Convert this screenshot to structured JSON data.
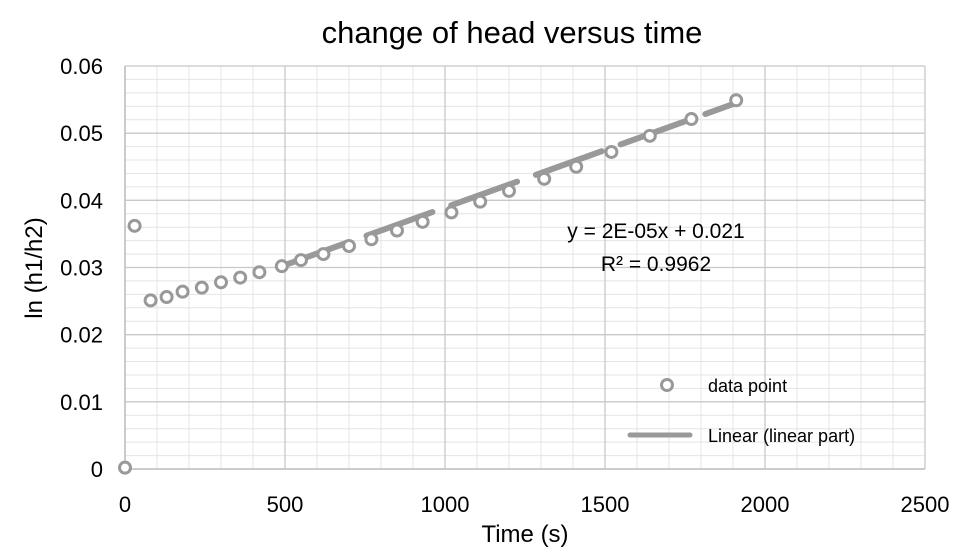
{
  "chart_data": {
    "type": "scatter",
    "title": "change of head versus time",
    "xlabel": "Time (s)",
    "ylabel": "ln (h1/h2)",
    "xlim": [
      0,
      2500
    ],
    "ylim": [
      0,
      0.06
    ],
    "x_ticks": [
      "0",
      "500",
      "1000",
      "1500",
      "2000",
      "2500"
    ],
    "y_ticks": [
      "0",
      "0.01",
      "0.02",
      "0.03",
      "0.04",
      "0.05",
      "0.06"
    ],
    "x_tick_values": [
      0,
      500,
      1000,
      1500,
      2000,
      2500
    ],
    "y_tick_values": [
      0,
      0.01,
      0.02,
      0.03,
      0.04,
      0.05,
      0.06
    ],
    "minor_x_step": 100,
    "minor_y_step": 0.002,
    "grid": true,
    "legend_position": "bottom-right",
    "series": [
      {
        "name": "data point",
        "marker": "open-circle",
        "color": "#999999",
        "x": [
          0,
          30,
          80,
          130,
          180,
          240,
          300,
          360,
          420,
          490,
          550,
          620,
          700,
          770,
          850,
          930,
          1020,
          1110,
          1200,
          1310,
          1410,
          1520,
          1640,
          1770,
          1910
        ],
        "y": [
          0.0002,
          0.0362,
          0.0251,
          0.0256,
          0.0264,
          0.027,
          0.0278,
          0.0285,
          0.0293,
          0.0302,
          0.0311,
          0.032,
          0.0332,
          0.0342,
          0.0355,
          0.0368,
          0.0382,
          0.0398,
          0.0414,
          0.0432,
          0.045,
          0.0472,
          0.0496,
          0.0521,
          0.0549
        ]
      },
      {
        "name": "Linear (linear part)",
        "type": "line",
        "style": "dashed",
        "color": "#999999",
        "x": [
          490,
          1910
        ],
        "y": [
          0.0302,
          0.0545
        ]
      }
    ],
    "annotations": {
      "equation": "y = 2E-05x + 0.021",
      "r_squared": "R² = 0.9962"
    }
  }
}
